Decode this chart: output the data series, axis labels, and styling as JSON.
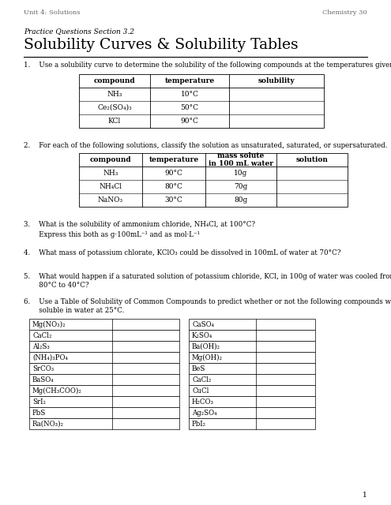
{
  "header_left": "Unit 4: Solutions",
  "header_right": "Chemistry 30",
  "subtitle": "Practice Questions Section 3.2",
  "title": "Solubility Curves & Solubility Tables",
  "q1_text": "1.    Use a solubility curve to determine the solubility of the following compounds at the temperatures given.",
  "table1_headers": [
    "compound",
    "temperature",
    "solubility"
  ],
  "table1_rows": [
    [
      "NH₃",
      "10°C",
      ""
    ],
    [
      "Ce₂(SO₄)₃",
      "50°C",
      ""
    ],
    [
      "KCl",
      "90°C",
      ""
    ]
  ],
  "q2_text": "2.    For each of the following solutions, classify the solution as unsaturated, saturated, or supersaturated.",
  "table2_headers": [
    "compound",
    "temperature",
    "mass solute\nin 100 mL water",
    "solution"
  ],
  "table2_rows": [
    [
      "NH₃",
      "90°C",
      "10g",
      ""
    ],
    [
      "NH₄Cl",
      "80°C",
      "70g",
      ""
    ],
    [
      "NaNO₃",
      "30°C",
      "80g",
      ""
    ]
  ],
  "q3_line1": "3.    What is the solubility of ammonium chloride, NH₄Cl, at 100°C?",
  "q3_line2": "       Express this both as g·100mL⁻¹ and as mol·L⁻¹",
  "q4_text": "4.    What mass of potassium chlorate, KClO₃ could be dissolved in 100mL of water at 70°C?",
  "q5_line1": "5.    What would happen if a saturated solution of potassium chloride, KCl, in 100g of water was cooled from",
  "q5_line2": "       80°C to 40°C?",
  "q6_line1": "6.    Use a Table of Solubility of Common Compounds to predict whether or not the following compounds will be",
  "q6_line2": "       soluble in water at 25°C.",
  "table3_left": [
    "Mg(NO₃)₂",
    "CaCl₂",
    "Al₂S₃",
    "(NH₄)₃PO₄",
    "SrCO₃",
    "BaSO₄",
    "Mg(CH₃COO)₂",
    "SrI₂",
    "PbS",
    "Ra(NO₃)₂"
  ],
  "table3_right": [
    "CaSO₄",
    "K₂SO₄",
    "Ba(OH)₂",
    "Mg(OH)₂",
    "BeS",
    "CaCl₂",
    "CuCl",
    "H₂CO₃",
    "Ag₂SO₄",
    "PbI₂"
  ],
  "page_num": "1",
  "bg_color": "#ffffff"
}
